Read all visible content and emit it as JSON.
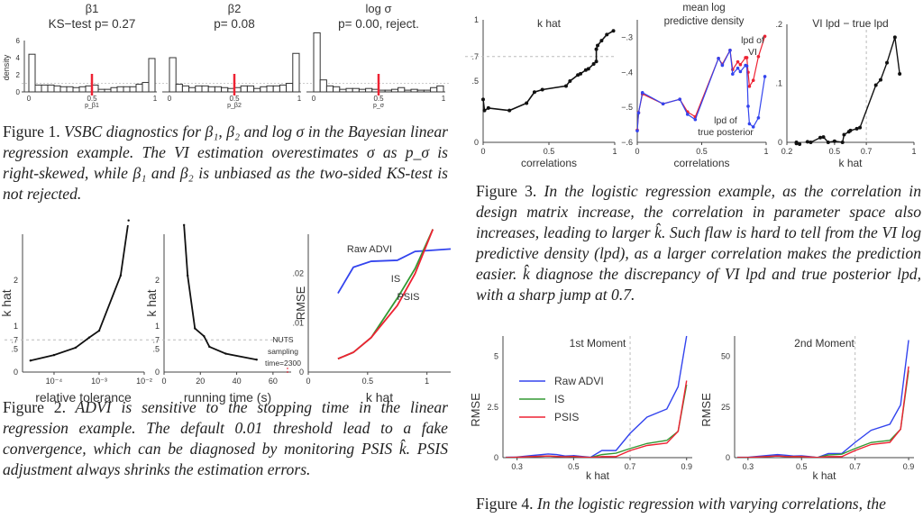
{
  "captions": {
    "fig1": {
      "label": "Figure 1.",
      "text": " VSBC diagnostics for β₁, β₂ and log σ in the Bayesian linear regression example. The VI estimation overestimates σ as p_σ is right-skewed, while β₁ and β₂ is unbiased as the two-sided KS-test is not rejected."
    },
    "fig2": {
      "label": "Figure 2.",
      "text": " ADVI is sensitive to the stopping time in the linear regression example. The default 0.01 threshold lead to a fake convergence, which can be diagnosed by monitoring PSIS k̂. PSIS adjustment always shrinks the estimation errors."
    },
    "fig3": {
      "label": "Figure 3.",
      "text": " In the logistic regression example, as the correlation in design matrix increase, the correlation in parameter space also increases, leading to larger k̂. Such flaw is hard to tell from the VI log predictive density (lpd), as a larger correlation makes the prediction easier. k̂ diagnose the discrepancy of VI lpd and true posterior lpd, with a sharp jump at 0.7."
    },
    "fig4": {
      "label": "Figure 4.",
      "text": " In the logistic regression with varying correlations, the"
    }
  },
  "colors": {
    "blue": "#3344ee",
    "red": "#ee2233",
    "green": "#339933",
    "black": "#111111",
    "grid": "#bbbbbb"
  },
  "chart_data": [
    {
      "id": "fig1a",
      "type": "bar",
      "title": "β1",
      "subtitle": "KS−test p= 0.27",
      "xlabel": "p_β1",
      "ylabel": "density",
      "xlim": [
        0,
        1
      ],
      "ylim": [
        0,
        6
      ],
      "xticks": [
        "0",
        "0.5",
        "1"
      ],
      "yticks": [
        "0",
        "2",
        "4",
        "6"
      ],
      "values": [
        4.4,
        0.8,
        0.8,
        0.8,
        0.7,
        0.6,
        0.6,
        0.5,
        0.6,
        0.7,
        0.8,
        0.3,
        0.3,
        0.5,
        0.6,
        0.6,
        0.6,
        0.9,
        1.1,
        3.9
      ],
      "reference_line": 0.5,
      "uniform_density": 1
    },
    {
      "id": "fig1b",
      "type": "bar",
      "title": "β2",
      "subtitle": "p= 0.08",
      "xlabel": "p_β2",
      "xlim": [
        0,
        1
      ],
      "ylim": [
        0,
        6
      ],
      "xticks": [
        "0",
        "0.5",
        "1"
      ],
      "values": [
        4.0,
        0.9,
        0.7,
        0.5,
        0.7,
        0.7,
        0.6,
        0.6,
        0.5,
        0.4,
        0.5,
        0.7,
        0.7,
        0.4,
        0.6,
        0.7,
        0.7,
        0.8,
        1.0,
        4.5
      ],
      "reference_line": 0.5,
      "uniform_density": 1
    },
    {
      "id": "fig1c",
      "type": "bar",
      "title": "log σ",
      "subtitle": "p= 0.00, reject.",
      "xlabel": "p_σ",
      "xlim": [
        0,
        1
      ],
      "ylim": [
        0,
        6
      ],
      "xticks": [
        "0",
        "0.5",
        "1"
      ],
      "values": [
        7.5,
        1.4,
        0.7,
        0.6,
        0.3,
        0.4,
        0.4,
        0.3,
        0.4,
        0.3,
        0.2,
        0.2,
        0.3,
        0.5,
        0.2,
        0.3,
        0.2,
        0.2,
        0.5,
        0.7
      ],
      "reference_line": 0.5,
      "uniform_density": 1
    },
    {
      "id": "fig2a",
      "type": "line",
      "xscale": "log",
      "xlabel": "relative tolerance",
      "ylabel": "k hat",
      "xlim": [
        2e-05,
        0.01
      ],
      "ylim": [
        0,
        3
      ],
      "xticks": [
        {
          "v": 0.0001,
          "label": "10⁻⁴"
        },
        {
          "v": 0.001,
          "label": "10⁻³"
        },
        {
          "v": 0.01,
          "label": "10⁻²"
        }
      ],
      "yticks": [
        {
          "v": 0,
          "label": "0"
        },
        {
          "v": 0.5,
          "label": ".5"
        },
        {
          "v": 0.7,
          "label": ".7"
        },
        {
          "v": 1,
          "label": "1"
        },
        {
          "v": 2,
          "label": "2"
        }
      ],
      "hline": 0.7,
      "series": [
        {
          "name": "k hat",
          "x": [
            3e-05,
            0.0001,
            0.0003,
            0.0006,
            0.001,
            0.003,
            0.0045
          ],
          "y": [
            0.25,
            0.37,
            0.53,
            0.75,
            0.9,
            2.1,
            3.3
          ]
        }
      ]
    },
    {
      "id": "fig2b",
      "type": "line",
      "xlabel": "running time (s)",
      "ylabel": "k hat",
      "xlim": [
        0,
        70
      ],
      "ylim": [
        0,
        3
      ],
      "xticks": [
        {
          "v": 0,
          "label": "0"
        },
        {
          "v": 20,
          "label": "20"
        },
        {
          "v": 40,
          "label": "40"
        },
        {
          "v": 60,
          "label": "60"
        }
      ],
      "yticks": [
        {
          "v": 0,
          "label": "0"
        },
        {
          "v": 0.5,
          "label": ".5"
        },
        {
          "v": 0.7,
          "label": ".7"
        },
        {
          "v": 1,
          "label": "1"
        },
        {
          "v": 2,
          "label": "2"
        }
      ],
      "hline": 0.7,
      "annotation": {
        "lines": [
          "NUTS",
          "sampling",
          "time=2300"
        ],
        "x": 68
      },
      "series": [
        {
          "name": "k hat",
          "x": [
            11,
            13,
            17,
            22,
            25,
            34,
            51
          ],
          "y": [
            3.2,
            2.1,
            0.95,
            0.78,
            0.55,
            0.4,
            0.27
          ]
        }
      ]
    },
    {
      "id": "fig2c",
      "type": "line",
      "xlabel": "k hat",
      "ylabel": "RMSE",
      "xlim": [
        0,
        1.2
      ],
      "ylim": [
        0,
        0.028
      ],
      "xticks": [
        {
          "v": 0,
          "label": "0"
        },
        {
          "v": 0.5,
          "label": "0.5"
        },
        {
          "v": 1,
          "label": "1"
        }
      ],
      "yticks": [
        {
          "v": 0,
          "label": "0"
        },
        {
          "v": 0.01,
          "label": ".01"
        },
        {
          "v": 0.02,
          "label": ".02"
        }
      ],
      "series": [
        {
          "name": "Raw ADVI",
          "color": "blue",
          "x": [
            0.25,
            0.38,
            0.53,
            0.75,
            0.9,
            1.2
          ],
          "y": [
            0.016,
            0.0213,
            0.0225,
            0.0227,
            0.0245,
            0.025
          ]
        },
        {
          "name": "IS",
          "color": "green",
          "x": [
            0.25,
            0.38,
            0.53,
            0.75,
            0.9,
            1.05
          ],
          "y": [
            0.0027,
            0.004,
            0.007,
            0.015,
            0.021,
            0.029
          ]
        },
        {
          "name": "PSIS",
          "color": "red",
          "x": [
            0.25,
            0.38,
            0.53,
            0.75,
            0.9,
            1.05
          ],
          "y": [
            0.0027,
            0.004,
            0.007,
            0.0135,
            0.02,
            0.029
          ]
        }
      ]
    },
    {
      "id": "fig3a",
      "type": "line",
      "title": "k hat",
      "xlabel": "correlations",
      "xlim": [
        0,
        1
      ],
      "ylim": [
        0,
        1
      ],
      "xticks": [
        {
          "v": 0,
          "label": "0"
        },
        {
          "v": 0.5,
          "label": "0.5"
        },
        {
          "v": 1,
          "label": "1"
        }
      ],
      "yticks": [
        {
          "v": 0,
          "label": "0"
        },
        {
          "v": 0.5,
          "label": ".5"
        },
        {
          "v": 0.7,
          "label": ".7"
        },
        {
          "v": 1,
          "label": "1"
        }
      ],
      "hline": 0.7,
      "series": [
        {
          "name": "k hat",
          "x": [
            0,
            0.01,
            0.04,
            0.2,
            0.33,
            0.39,
            0.45,
            0.63,
            0.66,
            0.72,
            0.74,
            0.78,
            0.8,
            0.84,
            0.86,
            0.86,
            0.87,
            0.9,
            0.94,
            0.99
          ],
          "y": [
            0.35,
            0.26,
            0.28,
            0.26,
            0.32,
            0.41,
            0.43,
            0.46,
            0.5,
            0.55,
            0.56,
            0.59,
            0.6,
            0.64,
            0.66,
            0.76,
            0.79,
            0.83,
            0.88,
            0.91
          ]
        }
      ]
    },
    {
      "id": "fig3b",
      "type": "line",
      "title": "mean log predictive density",
      "xlabel": "correlations",
      "xlim": [
        0,
        1
      ],
      "ylim": [
        -0.6,
        -0.25
      ],
      "xticks": [
        {
          "v": 0,
          "label": "0"
        },
        {
          "v": 0.5,
          "label": "0.5"
        },
        {
          "v": 1,
          "label": "1"
        }
      ],
      "yticks": [
        {
          "v": -0.6,
          "label": "−.6"
        },
        {
          "v": -0.5,
          "label": "−.5"
        },
        {
          "v": -0.4,
          "label": "−.4"
        },
        {
          "v": -0.3,
          "label": "−.3"
        }
      ],
      "series": [
        {
          "name": "lpd of VI",
          "color": "red",
          "x": [
            0,
            0.01,
            0.04,
            0.2,
            0.33,
            0.39,
            0.45,
            0.63,
            0.66,
            0.72,
            0.74,
            0.78,
            0.8,
            0.84,
            0.85,
            0.86,
            0.87,
            0.9,
            0.94,
            0.99
          ],
          "y": [
            -0.565,
            -0.515,
            -0.462,
            -0.49,
            -0.477,
            -0.513,
            -0.527,
            -0.36,
            -0.377,
            -0.337,
            -0.392,
            -0.37,
            -0.378,
            -0.358,
            -0.358,
            -0.4,
            -0.44,
            -0.423,
            -0.355,
            -0.297
          ]
        },
        {
          "name": "lpd of true posterior",
          "color": "blue",
          "x": [
            0,
            0.01,
            0.04,
            0.2,
            0.33,
            0.39,
            0.45,
            0.63,
            0.66,
            0.72,
            0.74,
            0.78,
            0.8,
            0.84,
            0.85,
            0.86,
            0.87,
            0.9,
            0.94,
            0.99
          ],
          "y": [
            -0.567,
            -0.516,
            -0.458,
            -0.49,
            -0.477,
            -0.52,
            -0.535,
            -0.36,
            -0.38,
            -0.337,
            -0.405,
            -0.388,
            -0.398,
            -0.38,
            -0.382,
            -0.497,
            -0.547,
            -0.556,
            -0.53,
            -0.412
          ]
        }
      ]
    },
    {
      "id": "fig3c",
      "type": "line",
      "title": "VI lpd − true lpd",
      "xlabel": "k hat",
      "xlim": [
        0.2,
        1
      ],
      "ylim": [
        0,
        0.2
      ],
      "xticks": [
        {
          "v": 0.2,
          "label": "0.2"
        },
        {
          "v": 0.5,
          "label": "0.5"
        },
        {
          "v": 0.7,
          "label": "0.7"
        },
        {
          "v": 1,
          "label": "1"
        }
      ],
      "yticks": [
        {
          "v": 0,
          "label": "0"
        },
        {
          "v": 0.1,
          "label": ".1"
        },
        {
          "v": 0.2,
          "label": ".2"
        }
      ],
      "vline": 0.7,
      "series": [
        {
          "name": "VI lpd − true lpd",
          "x": [
            0.26,
            0.26,
            0.28,
            0.33,
            0.35,
            0.41,
            0.43,
            0.46,
            0.5,
            0.55,
            0.56,
            0.59,
            0.6,
            0.64,
            0.66,
            0.76,
            0.79,
            0.83,
            0.88,
            0.91
          ],
          "y": [
            0.0,
            -0.002,
            -0.003,
            0.001,
            0.0,
            0.008,
            0.009,
            0.0,
            0.002,
            0.0,
            0.013,
            0.018,
            0.02,
            0.023,
            0.025,
            0.097,
            0.106,
            0.135,
            0.178,
            0.116
          ]
        }
      ]
    },
    {
      "id": "fig4a",
      "type": "line",
      "title": "1st Moment",
      "xlabel": "k hat",
      "ylabel": "RMSE",
      "xlim": [
        0.25,
        0.92
      ],
      "ylim": [
        0,
        6
      ],
      "xticks": [
        {
          "v": 0.3,
          "label": "0.3"
        },
        {
          "v": 0.5,
          "label": "0.5"
        },
        {
          "v": 0.7,
          "label": "0.7"
        },
        {
          "v": 0.9,
          "label": "0.9"
        }
      ],
      "yticks": [
        {
          "v": 0,
          "label": "0"
        },
        {
          "v": 2.5,
          "label": "2.5"
        },
        {
          "v": 5,
          "label": "5"
        }
      ],
      "vline": 0.7,
      "legend": "top-left",
      "series": [
        {
          "name": "Raw ADVI",
          "color": "blue",
          "x": [
            0.26,
            0.3,
            0.35,
            0.41,
            0.44,
            0.47,
            0.5,
            0.53,
            0.56,
            0.6,
            0.65,
            0.7,
            0.76,
            0.83,
            0.87,
            0.9
          ],
          "y": [
            0.02,
            0.03,
            0.1,
            0.18,
            0.15,
            0.08,
            0.1,
            0.06,
            0.02,
            0.35,
            0.35,
            1.2,
            2.0,
            2.4,
            3.5,
            6.0
          ]
        },
        {
          "name": "IS",
          "color": "green",
          "x": [
            0.26,
            0.3,
            0.35,
            0.41,
            0.44,
            0.47,
            0.5,
            0.53,
            0.56,
            0.6,
            0.65,
            0.7,
            0.76,
            0.83,
            0.87,
            0.9
          ],
          "y": [
            0.0,
            0.02,
            0.05,
            0.08,
            0.06,
            0.04,
            0.06,
            0.03,
            0.01,
            0.15,
            0.22,
            0.45,
            0.7,
            0.85,
            1.3,
            3.6
          ]
        },
        {
          "name": "PSIS",
          "color": "red",
          "x": [
            0.26,
            0.3,
            0.35,
            0.41,
            0.44,
            0.47,
            0.5,
            0.53,
            0.56,
            0.6,
            0.65,
            0.7,
            0.76,
            0.83,
            0.87,
            0.9
          ],
          "y": [
            0.0,
            0.02,
            0.05,
            0.08,
            0.06,
            0.04,
            0.06,
            0.03,
            0.01,
            0.05,
            0.05,
            0.35,
            0.6,
            0.72,
            1.3,
            3.8
          ]
        }
      ]
    },
    {
      "id": "fig4b",
      "type": "line",
      "title": "2nd Moment",
      "xlabel": "k hat",
      "ylabel": "RMSE",
      "xlim": [
        0.25,
        0.92
      ],
      "ylim": [
        0,
        60
      ],
      "xticks": [
        {
          "v": 0.3,
          "label": "0.3"
        },
        {
          "v": 0.5,
          "label": "0.5"
        },
        {
          "v": 0.7,
          "label": "0.7"
        },
        {
          "v": 0.9,
          "label": "0.9"
        }
      ],
      "yticks": [
        {
          "v": 0,
          "label": "0"
        },
        {
          "v": 25,
          "label": "25"
        },
        {
          "v": 50,
          "label": "50"
        }
      ],
      "vline": 0.7,
      "series": [
        {
          "name": "Raw ADVI",
          "color": "blue",
          "x": [
            0.26,
            0.3,
            0.35,
            0.41,
            0.44,
            0.47,
            0.5,
            0.53,
            0.56,
            0.6,
            0.65,
            0.7,
            0.76,
            0.83,
            0.87,
            0.9
          ],
          "y": [
            0.2,
            0.2,
            0.8,
            1.5,
            1.2,
            0.8,
            0.9,
            0.5,
            0.1,
            2.0,
            2.0,
            7.5,
            13.5,
            16.5,
            26,
            58
          ]
        },
        {
          "name": "IS",
          "color": "green",
          "x": [
            0.26,
            0.3,
            0.35,
            0.41,
            0.44,
            0.47,
            0.5,
            0.53,
            0.56,
            0.6,
            0.65,
            0.7,
            0.76,
            0.83,
            0.87,
            0.9
          ],
          "y": [
            0.1,
            0.1,
            0.4,
            0.8,
            0.6,
            0.5,
            0.5,
            0.3,
            0.1,
            1.3,
            1.7,
            4.5,
            7.5,
            8.5,
            14,
            43
          ]
        },
        {
          "name": "PSIS",
          "color": "red",
          "x": [
            0.26,
            0.3,
            0.35,
            0.41,
            0.44,
            0.47,
            0.5,
            0.53,
            0.56,
            0.6,
            0.65,
            0.7,
            0.76,
            0.83,
            0.87,
            0.9
          ],
          "y": [
            0.1,
            0.1,
            0.4,
            0.8,
            0.6,
            0.5,
            0.5,
            0.3,
            0.1,
            0.5,
            0.5,
            3.5,
            6.5,
            7.5,
            14,
            45
          ]
        }
      ]
    }
  ]
}
